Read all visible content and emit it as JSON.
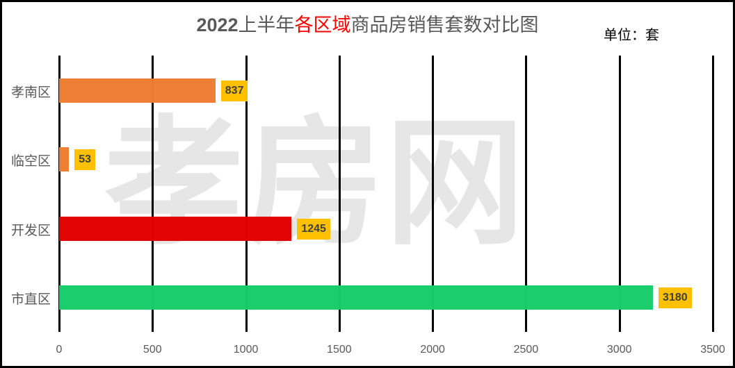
{
  "chart_data": {
    "type": "bar",
    "orientation": "horizontal",
    "title": "2022上半年各区域商品房销售套数对比图",
    "title_parts": [
      {
        "text": "2022",
        "style": "bold-gray"
      },
      {
        "text": "上半年",
        "style": "gray"
      },
      {
        "text": "各区域",
        "style": "red"
      },
      {
        "text": "商品房销售套数对比图",
        "style": "gray"
      }
    ],
    "unit_label": "单位：套",
    "categories": [
      "孝南区",
      "临空区",
      "开发区",
      "市直区"
    ],
    "values": [
      837,
      53,
      1245,
      3180
    ],
    "bar_colors": [
      "#ed7d31",
      "#ed7d31",
      "#e00000",
      "#16cc6a"
    ],
    "data_label_bg": "#ffc000",
    "xlabel": "",
    "ylabel": "",
    "xlim": [
      0,
      3500
    ],
    "x_ticks": [
      0,
      500,
      1000,
      1500,
      2000,
      2500,
      3000,
      3500
    ],
    "grid": true,
    "legend": null,
    "watermark": "孝房网"
  }
}
